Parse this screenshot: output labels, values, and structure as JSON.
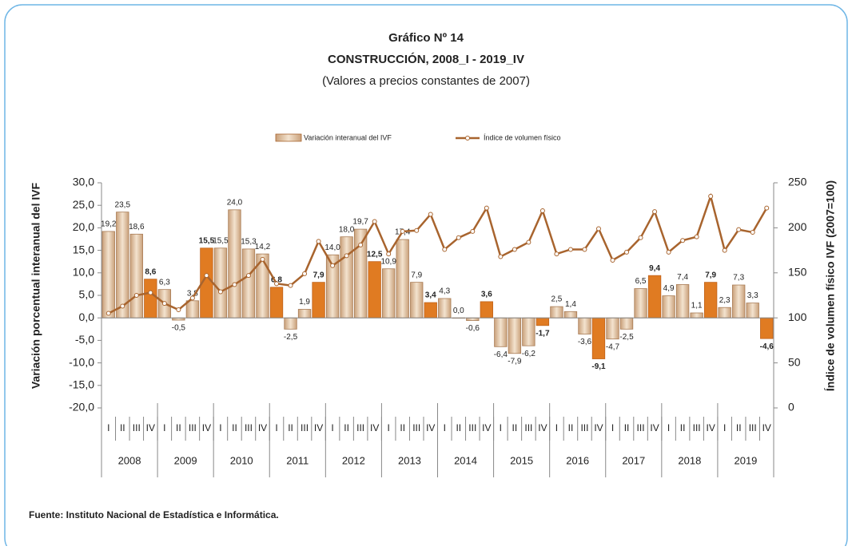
{
  "chart_data": {
    "type": "bar_line",
    "title": "Gráfico Nº 14",
    "subtitle": "CONSTRUCCIÓN, 2008_I - 2019_IV",
    "note": "(Valores a precios constantes de 2007)",
    "y_label": "Variación porcentual interanual del IVF",
    "y2_label": "Índice de volumen físico IVF (2007=100)",
    "source": "Fuente: Instituto Nacional de Estadística e Informática.",
    "years": [
      "2008",
      "2009",
      "2010",
      "2011",
      "2012",
      "2013",
      "2014",
      "2015",
      "2016",
      "2017",
      "2018",
      "2019"
    ],
    "categories": [
      "I",
      "II",
      "III",
      "IV",
      "I",
      "II",
      "III",
      "IV",
      "I",
      "II",
      "III",
      "IV",
      "I",
      "II",
      "III",
      "IV",
      "I",
      "II",
      "III",
      "IV",
      "I",
      "II",
      "III",
      "IV",
      "I",
      "II",
      "III",
      "IV",
      "I",
      "II",
      "III",
      "IV",
      "I",
      "II",
      "III",
      "IV",
      "I",
      "II",
      "III",
      "IV",
      "I",
      "II",
      "III",
      "IV",
      "I",
      "II",
      "III",
      "IV"
    ],
    "series": [
      {
        "name": "Variación interanual del IVF",
        "color": "#d9b48a",
        "values": [
          19.2,
          23.5,
          18.6,
          8.6,
          6.3,
          -0.5,
          3.8,
          15.5,
          15.5,
          24.0,
          15.3,
          14.2,
          6.8,
          -2.5,
          1.9,
          7.9,
          14.0,
          18.0,
          19.7,
          12.5,
          10.9,
          17.4,
          7.9,
          3.4,
          4.3,
          0.0,
          -0.6,
          3.6,
          -6.4,
          -7.9,
          -6.2,
          -1.7,
          2.5,
          1.4,
          -3.6,
          -9.1,
          -4.7,
          -2.5,
          6.5,
          9.4,
          4.9,
          7.4,
          1.1,
          7.9,
          2.3,
          7.3,
          3.3,
          -4.6
        ],
        "value_labels": [
          "19,2",
          "23,5",
          "18,6",
          "8,6",
          "6,3",
          "-0,5",
          "3,8",
          "15,5",
          "15,5",
          "24,0",
          "15,3",
          "14,2",
          "6,8",
          "-2,5",
          "1,9",
          "7,9",
          "14,0",
          "18,0",
          "19,7",
          "12,5",
          "10,9",
          "17,4",
          "7,9",
          "3,4",
          "4,3",
          "0,0",
          "-0,6",
          "3,6",
          "-6,4",
          "-7,9",
          "-6,2",
          "-1,7",
          "2,5",
          "1,4",
          "-3,6",
          "-9,1",
          "-4,7",
          "-2,5",
          "6,5",
          "9,4",
          "4,9",
          "7,4",
          "1,1",
          "7,9",
          "2,3",
          "7,3",
          "3,3",
          "-4,6"
        ],
        "bar_colors": [
          "#d9b48a",
          "#d9b48a",
          "#d9b48a",
          "#e07b22",
          "#d9b48a",
          "#d9b48a",
          "#d9b48a",
          "#e07b22",
          "#d9b48a",
          "#d9b48a",
          "#d9b48a",
          "#d9b48a",
          "#e07b22",
          "#d9b48a",
          "#d9b48a",
          "#e07b22",
          "#d9b48a",
          "#d9b48a",
          "#d9b48a",
          "#e07b22",
          "#d9b48a",
          "#d9b48a",
          "#d9b48a",
          "#e07b22",
          "#d9b48a",
          "#d9b48a",
          "#d9b48a",
          "#e07b22",
          "#d9b48a",
          "#d9b48a",
          "#d9b48a",
          "#e07b22",
          "#d9b48a",
          "#d9b48a",
          "#d9b48a",
          "#e07b22",
          "#d9b48a",
          "#d9b48a",
          "#d9b48a",
          "#e07b22",
          "#d9b48a",
          "#d9b48a",
          "#d9b48a",
          "#e07b22",
          "#d9b48a",
          "#d9b48a",
          "#d9b48a",
          "#e07b22"
        ]
      },
      {
        "name": "Índice de volumen físico",
        "color": "#a8642e",
        "axis": "y2",
        "values": [
          105,
          113,
          125,
          128,
          116,
          109,
          122,
          147,
          129,
          137,
          147,
          165,
          138,
          136,
          149,
          185,
          158,
          169,
          181,
          207,
          171,
          196,
          197,
          215,
          176,
          189,
          196,
          222,
          168,
          176,
          184,
          219,
          171,
          176,
          176,
          199,
          164,
          173,
          189,
          218,
          173,
          186,
          190,
          235,
          175,
          198,
          195,
          222
        ]
      }
    ],
    "ylim": [
      -20,
      30
    ],
    "yticks": [
      {
        "value": -20,
        "label": "-20,0"
      },
      {
        "value": -15,
        "label": "-15,0"
      },
      {
        "value": -10,
        "label": "-10,0"
      },
      {
        "value": -5,
        "label": "-5,0"
      },
      {
        "value": 0,
        "label": "0,0"
      },
      {
        "value": 5,
        "label": "5,0"
      },
      {
        "value": 10,
        "label": "10,0"
      },
      {
        "value": 15,
        "label": "15,0"
      },
      {
        "value": 20,
        "label": "20,0"
      },
      {
        "value": 25,
        "label": "25,0"
      },
      {
        "value": 30,
        "label": "30,0"
      }
    ],
    "y2lim": [
      0,
      250
    ],
    "y2ticks": [
      0,
      50,
      100,
      150,
      200,
      250
    ]
  }
}
